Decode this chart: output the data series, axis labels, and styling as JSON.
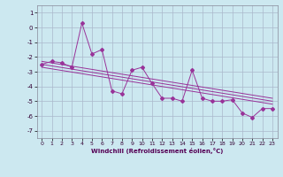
{
  "title": "",
  "xlabel": "Windchill (Refroidissement éolien,°C)",
  "xlim": [
    -0.5,
    23.5
  ],
  "ylim": [
    -7.5,
    1.5
  ],
  "xticks": [
    0,
    1,
    2,
    3,
    4,
    5,
    6,
    7,
    8,
    9,
    10,
    11,
    12,
    13,
    14,
    15,
    16,
    17,
    18,
    19,
    20,
    21,
    22,
    23
  ],
  "yticks": [
    1,
    0,
    -1,
    -2,
    -3,
    -4,
    -5,
    -6,
    -7
  ],
  "background_color": "#cce8f0",
  "grid_color": "#aab8cc",
  "line_color": "#993399",
  "data_x": [
    0,
    1,
    2,
    3,
    4,
    5,
    6,
    7,
    8,
    9,
    10,
    11,
    12,
    13,
    14,
    15,
    16,
    17,
    18,
    19,
    20,
    21,
    22,
    23
  ],
  "data_y": [
    -2.5,
    -2.3,
    -2.4,
    -2.7,
    0.3,
    -1.8,
    -1.5,
    -4.3,
    -4.5,
    -2.9,
    -2.7,
    -3.8,
    -4.8,
    -4.8,
    -5.0,
    -2.9,
    -4.8,
    -5.0,
    -5.0,
    -4.9,
    -5.8,
    -6.1,
    -5.5,
    -5.5
  ],
  "trend1_x": [
    0,
    23
  ],
  "trend1_y": [
    -2.3,
    -4.8
  ],
  "trend2_x": [
    0,
    23
  ],
  "trend2_y": [
    -2.5,
    -5.0
  ],
  "trend3_x": [
    0,
    23
  ],
  "trend3_y": [
    -2.7,
    -5.2
  ]
}
